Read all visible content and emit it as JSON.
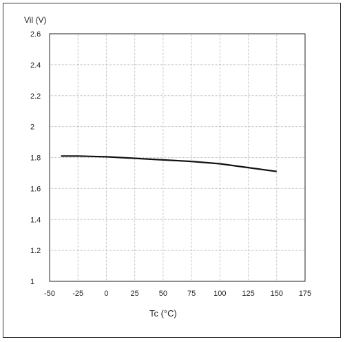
{
  "chart_data": {
    "type": "line",
    "title": "",
    "ylabel": "Vil (V)",
    "xlabel": "Tc (°C)",
    "xlim": [
      -50,
      175
    ],
    "ylim": [
      1,
      2.6
    ],
    "x_ticks": [
      -50,
      -25,
      0,
      25,
      50,
      75,
      100,
      125,
      150,
      175
    ],
    "x_tick_labels": [
      "-50",
      "-25",
      "0",
      "25",
      "50",
      "75",
      "100",
      "125",
      "150",
      "175"
    ],
    "y_ticks": [
      1,
      1.2,
      1.4,
      1.6,
      1.8,
      2,
      2.2,
      2.4,
      2.6
    ],
    "y_tick_labels": [
      "1",
      "1.2",
      "1.4",
      "1.6",
      "1.8",
      "2",
      "2.2",
      "2.4",
      "2.6"
    ],
    "grid": true,
    "series": [
      {
        "x": [
          -40,
          -25,
          0,
          25,
          50,
          75,
          100,
          125,
          150
        ],
        "y": [
          1.81,
          1.81,
          1.805,
          1.795,
          1.785,
          1.775,
          1.76,
          1.735,
          1.71
        ]
      }
    ],
    "colors": {
      "line": "#111111",
      "grid": "#bdbdbd",
      "axis": "#222222",
      "text": "#222222"
    }
  }
}
